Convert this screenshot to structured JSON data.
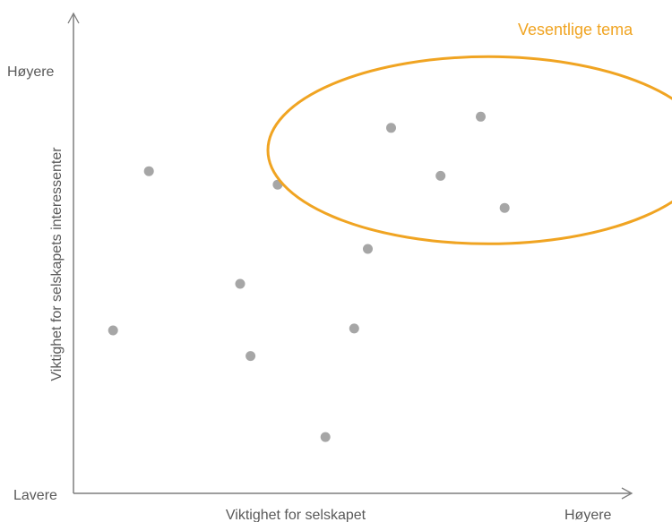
{
  "chart_data": {
    "type": "scatter",
    "title": "",
    "xlabel": "Viktighet for selskapet",
    "ylabel": "Viktighet for selskapets interessenter",
    "x_low_label": "Lavere",
    "x_high_label": "Høyere",
    "y_high_label": "Høyere",
    "xlim": [
      0,
      100
    ],
    "ylim": [
      0,
      100
    ],
    "grid": false,
    "points": [
      {
        "x": 7.3,
        "y": 35.0
      },
      {
        "x": 13.9,
        "y": 69.2
      },
      {
        "x": 30.7,
        "y": 45.0
      },
      {
        "x": 32.6,
        "y": 29.5
      },
      {
        "x": 37.6,
        "y": 66.3
      },
      {
        "x": 46.4,
        "y": 12.1
      },
      {
        "x": 51.7,
        "y": 35.4
      },
      {
        "x": 54.2,
        "y": 52.5
      },
      {
        "x": 58.5,
        "y": 78.5
      },
      {
        "x": 67.6,
        "y": 68.2
      },
      {
        "x": 75.0,
        "y": 80.9
      },
      {
        "x": 79.4,
        "y": 61.3
      }
    ],
    "highlight": {
      "label": "Vesentlige tema",
      "center": {
        "x": 76.4,
        "y": 73.7
      },
      "rx": 40.6,
      "ry": 20.1
    },
    "colors": {
      "point": "#a6a6a6",
      "axis": "#7f7f7f",
      "text": "#595959",
      "highlight": "#f0a422"
    }
  }
}
